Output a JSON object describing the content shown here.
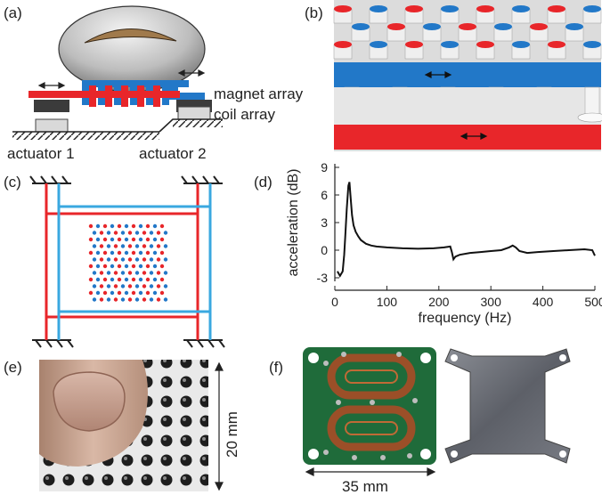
{
  "panels": {
    "a": {
      "label": "(a)",
      "magnet_label": "magnet array",
      "coil_label": "coil array",
      "actuator1": "actuator 1",
      "actuator2": "actuator 2"
    },
    "b": {
      "label": "(b)"
    },
    "c": {
      "label": "(c)"
    },
    "d": {
      "label": "(d)"
    },
    "e": {
      "label": "(e)",
      "dimension": "20 mm"
    },
    "f": {
      "label": "(f)",
      "dimension": "35 mm"
    }
  },
  "colors": {
    "red": "#e8262a",
    "blue": "#2278c8",
    "lightblue": "#3aa8e0"
  },
  "chart_data": {
    "type": "line",
    "title": "",
    "xlabel": "frequency (Hz)",
    "ylabel": "acceleration (dB)",
    "xlim": [
      0,
      500
    ],
    "ylim": [
      -3,
      9
    ],
    "xticks": [
      0,
      100,
      200,
      300,
      400,
      500
    ],
    "yticks": [
      -3,
      0,
      3,
      6,
      9
    ],
    "series": [
      {
        "x": [
          5,
          10,
          15,
          18,
          20,
          23,
          26,
          28,
          30,
          33,
          36,
          40,
          45,
          50,
          60,
          70,
          80,
          100,
          130,
          160,
          190,
          210,
          222,
          225,
          228,
          232,
          240,
          260,
          280,
          300,
          320,
          335,
          342,
          348,
          355,
          370,
          390,
          420,
          450,
          480,
          495,
          500
        ],
        "y": [
          -2.3,
          -2.8,
          -2.3,
          -0.5,
          1.5,
          4.5,
          7.0,
          7.4,
          6.0,
          3.8,
          2.7,
          2.0,
          1.5,
          1.1,
          0.7,
          0.5,
          0.4,
          0.3,
          0.2,
          0.15,
          0.2,
          0.3,
          0.4,
          -0.2,
          -1.0,
          -0.7,
          -0.5,
          -0.3,
          -0.2,
          -0.1,
          0.0,
          0.3,
          0.5,
          0.3,
          -0.1,
          -0.3,
          -0.2,
          -0.1,
          0.0,
          0.1,
          0.0,
          -0.6
        ]
      }
    ]
  }
}
